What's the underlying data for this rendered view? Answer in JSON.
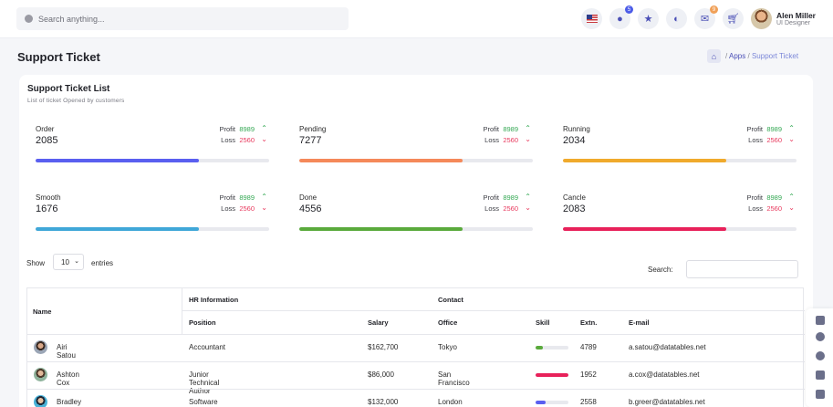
{
  "header": {
    "search_placeholder": "Search anything...",
    "icons": [
      {
        "name": "us-flag-icon"
      },
      {
        "name": "bell-icon",
        "badge": "5"
      },
      {
        "name": "star-icon"
      },
      {
        "name": "theme-toggle-icon"
      },
      {
        "name": "mail-icon",
        "badge": "9"
      },
      {
        "name": "cart-icon"
      }
    ],
    "user": {
      "name": "Alen Miller",
      "role": "UI Designer"
    }
  },
  "page": {
    "title": "Support Ticket",
    "breadcrumb": {
      "sep": "/",
      "apps": "Apps",
      "current": "Support Ticket"
    }
  },
  "card": {
    "title": "Support Ticket List",
    "subtitle": "List of ticket Opened by customers"
  },
  "stats": [
    {
      "label": "Order",
      "value": "2085",
      "profit_label": "Profit",
      "profit": "8989",
      "loss_label": "Loss",
      "loss": "2560",
      "progress": 0.7,
      "color": "#5a5ff0"
    },
    {
      "label": "Pending",
      "value": "7277",
      "profit_label": "Profit",
      "profit": "8989",
      "loss_label": "Loss",
      "loss": "2560",
      "progress": 0.7,
      "color": "#f5895a"
    },
    {
      "label": "Running",
      "value": "2034",
      "profit_label": "Profit",
      "profit": "8989",
      "loss_label": "Loss",
      "loss": "2560",
      "progress": 0.7,
      "color": "#f0aa2c"
    },
    {
      "label": "Smooth",
      "value": "1676",
      "profit_label": "Profit",
      "profit": "8989",
      "loss_label": "Loss",
      "loss": "2560",
      "progress": 0.7,
      "color": "#40a7d8"
    },
    {
      "label": "Done",
      "value": "4556",
      "profit_label": "Profit",
      "profit": "8989",
      "loss_label": "Loss",
      "loss": "2560",
      "progress": 0.7,
      "color": "#5aaa3c"
    },
    {
      "label": "Cancle",
      "value": "2083",
      "profit_label": "Profit",
      "profit": "8989",
      "loss_label": "Loss",
      "loss": "2560",
      "progress": 0.7,
      "color": "#e8215a"
    }
  ],
  "table_controls": {
    "show": "Show",
    "entries_value": "10",
    "entries": "entries",
    "search_label": "Search:"
  },
  "table": {
    "group_headers": {
      "name": "Name",
      "hr": "HR Information",
      "contact": "Contact"
    },
    "columns": {
      "position": "Position",
      "salary": "Salary",
      "office": "Office",
      "skill": "Skill",
      "extn": "Extn.",
      "email": "E-mail"
    },
    "rows": [
      {
        "name": "Airi Satou",
        "position": "Accountant",
        "salary": "$162,700",
        "office": "Tokyo",
        "skill": 0.22,
        "skill_color": "#5aaa3c",
        "extn": "4789",
        "email": "a.satou@datatables.net"
      },
      {
        "name": "Ashton Cox",
        "position": "Junior Technical Author",
        "salary": "$86,000",
        "office": "San Francisco",
        "skill": 1.0,
        "skill_color": "#e8215a",
        "extn": "1952",
        "email": "a.cox@datatables.net"
      },
      {
        "name": "Bradley Greer",
        "position": "Software Engineer",
        "salary": "$132,000",
        "office": "London",
        "skill": 0.3,
        "skill_color": "#5a5ff0",
        "extn": "2558",
        "email": "b.greer@datatables.net"
      }
    ]
  }
}
